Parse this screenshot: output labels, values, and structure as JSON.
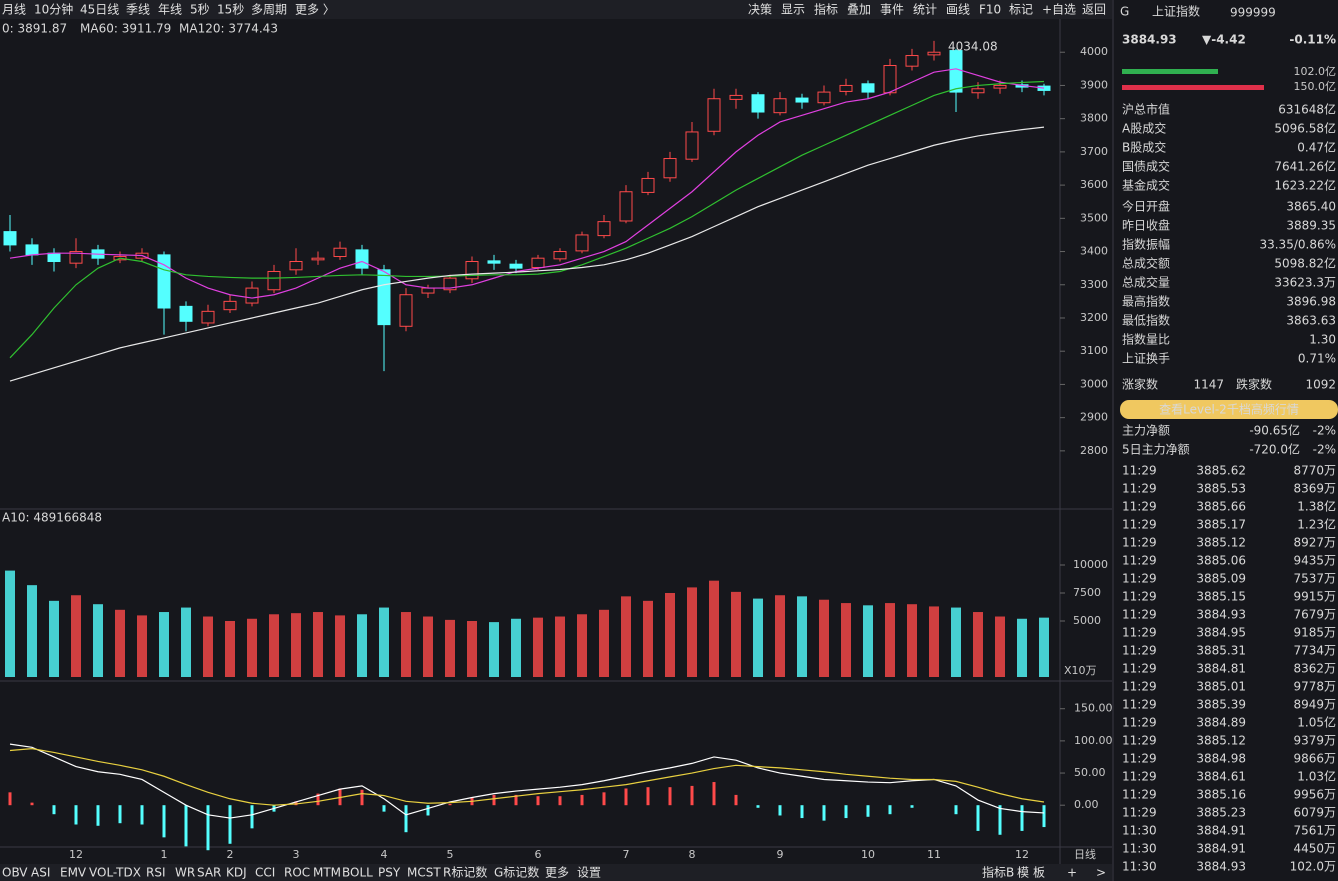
{
  "toolbar": {
    "left": [
      "月线",
      "10分钟",
      "45日线",
      "季线",
      "年线",
      "5秒",
      "15秒",
      "多周期",
      "更多 〉"
    ],
    "right": [
      "决策",
      "显示",
      "指标",
      "叠加",
      "事件",
      "统计",
      "画线",
      "F10",
      "标记",
      "+自选",
      "返回"
    ]
  },
  "tabs": {
    "left": [
      "OBV",
      "ASI",
      "EMV",
      "VOL-TDX",
      "RSI",
      "WR",
      "SAR",
      "KDJ",
      "CCI",
      "ROC",
      "MTM",
      "BOLL",
      "PSY",
      "MCST",
      "R标记数",
      "G标记数",
      "更多",
      "设置"
    ],
    "right": [
      "指标B",
      "模",
      "板",
      "+",
      ">"
    ],
    "period": "日线"
  },
  "chart_data": [
    {
      "type": "candlestick",
      "legend": [
        {
          "text": "0: 3891.87",
          "color": "#e040e0"
        },
        {
          "text": "MA60: 3911.79",
          "color": "#30c030"
        },
        {
          "text": "MA120: 3774.43",
          "color": "#e8e8e8"
        }
      ],
      "annotation": "4034.08",
      "categories": [
        null,
        null,
        null,
        "12",
        null,
        null,
        null,
        "1",
        null,
        null,
        "2",
        null,
        null,
        "3",
        null,
        null,
        null,
        "4",
        null,
        null,
        "5",
        null,
        null,
        null,
        "6",
        null,
        null,
        null,
        "7",
        null,
        null,
        "8",
        null,
        null,
        null,
        "9",
        null,
        null,
        null,
        "10",
        null,
        null,
        "11",
        null,
        null,
        null,
        "12",
        null
      ],
      "open": [
        3460,
        3420,
        3395,
        3365,
        3405,
        3375,
        3380,
        3390,
        3235,
        3185,
        3225,
        3245,
        3285,
        3345,
        3375,
        3385,
        3405,
        3345,
        3175,
        3275,
        3285,
        3318,
        3372,
        3362,
        3352,
        3378,
        3402,
        3448,
        3492,
        3578,
        3622,
        3678,
        3762,
        3858,
        3872,
        3818,
        3862,
        3848,
        3882,
        3905,
        3878,
        3958,
        3992,
        4005,
        3878,
        3892,
        3902,
        3898
      ],
      "high": [
        3510,
        3440,
        3410,
        3440,
        3420,
        3400,
        3410,
        3400,
        3250,
        3240,
        3270,
        3310,
        3360,
        3410,
        3400,
        3430,
        3420,
        3360,
        3290,
        3300,
        3330,
        3385,
        3390,
        3375,
        3390,
        3410,
        3460,
        3510,
        3600,
        3640,
        3700,
        3790,
        3890,
        3890,
        3880,
        3880,
        3875,
        3900,
        3920,
        3915,
        3980,
        4010,
        4034.08,
        4010,
        3910,
        3915,
        3915,
        3905
      ],
      "low": [
        3400,
        3360,
        3340,
        3350,
        3360,
        3365,
        3370,
        3150,
        3160,
        3175,
        3215,
        3235,
        3275,
        3330,
        3360,
        3375,
        3330,
        3040,
        3160,
        3260,
        3275,
        3305,
        3345,
        3335,
        3345,
        3370,
        3395,
        3440,
        3485,
        3570,
        3610,
        3670,
        3750,
        3830,
        3800,
        3810,
        3830,
        3840,
        3870,
        3860,
        3870,
        3945,
        3975,
        3820,
        3860,
        3875,
        3880,
        3870
      ],
      "close": [
        3420,
        3390,
        3370,
        3400,
        3380,
        3385,
        3395,
        3230,
        3190,
        3220,
        3250,
        3290,
        3340,
        3370,
        3380,
        3410,
        3350,
        3180,
        3270,
        3290,
        3320,
        3370,
        3365,
        3350,
        3380,
        3400,
        3450,
        3490,
        3580,
        3620,
        3680,
        3760,
        3860,
        3870,
        3820,
        3860,
        3850,
        3880,
        3900,
        3880,
        3960,
        3990,
        4000,
        3880,
        3890,
        3900,
        3895,
        3885
      ],
      "lines": [
        {
          "color": "#e040e0",
          "values": [
            3380,
            3390,
            3395,
            3395,
            3392,
            3390,
            3388,
            3360,
            3320,
            3290,
            3270,
            3260,
            3270,
            3290,
            3320,
            3350,
            3370,
            3340,
            3300,
            3290,
            3290,
            3300,
            3320,
            3340,
            3350,
            3360,
            3380,
            3400,
            3430,
            3480,
            3530,
            3580,
            3640,
            3700,
            3750,
            3790,
            3810,
            3830,
            3850,
            3860,
            3880,
            3910,
            3940,
            3950,
            3930,
            3910,
            3900,
            3891.87
          ]
        },
        {
          "color": "#30c030",
          "values": [
            3080,
            3150,
            3230,
            3300,
            3350,
            3380,
            3370,
            3345,
            3330,
            3325,
            3322,
            3320,
            3320,
            3322,
            3325,
            3328,
            3330,
            3328,
            3325,
            3325,
            3326,
            3328,
            3330,
            3330,
            3332,
            3340,
            3360,
            3385,
            3410,
            3440,
            3470,
            3505,
            3545,
            3585,
            3620,
            3655,
            3690,
            3720,
            3750,
            3780,
            3810,
            3840,
            3870,
            3890,
            3900,
            3905,
            3909,
            3911.79
          ]
        },
        {
          "color": "#e8e8e8",
          "values": [
            3010,
            3030,
            3050,
            3070,
            3090,
            3110,
            3125,
            3140,
            3155,
            3170,
            3185,
            3200,
            3215,
            3230,
            3245,
            3265,
            3285,
            3300,
            3310,
            3320,
            3328,
            3332,
            3335,
            3338,
            3342,
            3346,
            3352,
            3360,
            3375,
            3395,
            3420,
            3445,
            3475,
            3505,
            3535,
            3560,
            3585,
            3610,
            3635,
            3660,
            3680,
            3700,
            3720,
            3735,
            3748,
            3758,
            3767,
            3774.43
          ]
        }
      ],
      "up_color": "#ff4a4a",
      "down_color": "#54ffff",
      "ylim": [
        2628,
        4097
      ],
      "yticks": [
        2800,
        2900,
        3000,
        3100,
        3200,
        3300,
        3400,
        3500,
        3600,
        3700,
        3800,
        3900,
        4000
      ]
    },
    {
      "type": "bar",
      "legend": "A10: 489166848",
      "unit": "X10万",
      "values": [
        9500,
        8200,
        6800,
        7300,
        6500,
        6000,
        5500,
        5800,
        6200,
        5400,
        5000,
        5200,
        5600,
        5700,
        5800,
        5500,
        5600,
        6200,
        5800,
        5400,
        5100,
        5000,
        4900,
        5200,
        5300,
        5400,
        5600,
        6000,
        7200,
        6800,
        7500,
        8000,
        8600,
        7600,
        7000,
        7300,
        7200,
        6900,
        6600,
        6400,
        6600,
        6500,
        6300,
        6200,
        5800,
        5400,
        5200,
        5300
      ],
      "ylim": [
        0,
        15000
      ],
      "yticks": [
        5000,
        7500,
        10000
      ]
    },
    {
      "type": "macd",
      "dif": {
        "color": "#ffffff",
        "values": [
          95,
          90,
          75,
          60,
          52,
          48,
          40,
          20,
          0,
          -15,
          -20,
          -15,
          -5,
          5,
          15,
          25,
          30,
          10,
          -15,
          -5,
          5,
          12,
          18,
          22,
          25,
          28,
          32,
          38,
          45,
          52,
          58,
          65,
          75,
          70,
          58,
          50,
          45,
          40,
          38,
          36,
          35,
          38,
          40,
          30,
          8,
          -5,
          -10,
          -12
        ]
      },
      "dea": {
        "color": "#e8d040",
        "values": [
          85,
          88,
          82,
          75,
          68,
          62,
          55,
          45,
          32,
          20,
          10,
          3,
          0,
          2,
          6,
          12,
          18,
          15,
          6,
          3,
          4,
          6,
          10,
          14,
          18,
          21,
          24,
          28,
          32,
          38,
          44,
          50,
          57,
          62,
          60,
          58,
          55,
          52,
          48,
          45,
          42,
          40,
          40,
          37,
          28,
          18,
          10,
          5
        ]
      },
      "histogram": [
        20,
        4,
        -14,
        -30,
        -32,
        -28,
        -30,
        -50,
        -64,
        -70,
        -60,
        -36,
        -10,
        6,
        18,
        26,
        24,
        -10,
        -42,
        -16,
        2,
        12,
        16,
        16,
        14,
        14,
        16,
        20,
        26,
        28,
        28,
        30,
        36,
        16,
        -4,
        -16,
        -20,
        -24,
        -20,
        -18,
        -14,
        -4,
        0,
        -14,
        -40,
        -46,
        -40,
        -34
      ],
      "ylim": [
        -65,
        190
      ],
      "yticks": [
        {
          "value": 0,
          "label": "0.00"
        },
        {
          "value": 50,
          "label": "50.00"
        },
        {
          "value": 100,
          "label": "100.00"
        },
        {
          "value": 150,
          "label": "150.00"
        }
      ]
    }
  ],
  "quote": {
    "flag": "G",
    "name": "上证指数",
    "code": "999999",
    "price": "3884.93",
    "change": "▼-4.42",
    "pct": "-0.11%",
    "bars": [
      "102.0亿",
      "150.0亿"
    ],
    "rows": [
      {
        "label": "沪总市值",
        "value": "631648亿",
        "color": "#e0e0e0"
      },
      {
        "label": "A股成交",
        "value": "5096.58亿",
        "color": "#f0b040"
      },
      {
        "label": "B股成交",
        "value": "0.47亿",
        "color": "#f0d040"
      },
      {
        "label": "国债成交",
        "value": "7641.26亿",
        "color": "#f0d040"
      },
      {
        "label": "基金成交",
        "value": "1623.22亿",
        "color": "#f0d040"
      },
      {
        "label": "今日开盘",
        "value": "3865.40",
        "color": "#30d060"
      },
      {
        "label": "昨日收盘",
        "value": "3889.35",
        "color": "#e0e0e0"
      },
      {
        "label": "指数振幅",
        "value": "33.35/0.86%",
        "color": "#e0e0e0"
      },
      {
        "label": "总成交额",
        "value": "5098.82亿",
        "color": "#f0d040"
      },
      {
        "label": "总成交量",
        "value": "33623.3万",
        "color": "#f0d040"
      },
      {
        "label": "最高指数",
        "value": "3896.98",
        "color": "#ff4a4a"
      },
      {
        "label": "最低指数",
        "value": "3863.63",
        "color": "#30d060"
      },
      {
        "label": "指数量比",
        "value": "1.30",
        "color": "#ff4a4a"
      },
      {
        "label": "上证换手",
        "value": "0.71%",
        "color": "#e0e0e0"
      }
    ],
    "breadth": [
      "涨家数",
      "1147",
      "跌家数",
      "1092"
    ],
    "button": "查看Level-2千档高频行情",
    "flows": [
      [
        "主力净额",
        "-90.65亿",
        "-2%"
      ],
      [
        "5日主力净额",
        "-720.0亿",
        "-2%"
      ]
    ],
    "ticks": {
      "times": [
        "11:29",
        "11:29",
        "11:29",
        "11:29",
        "11:29",
        "11:29",
        "11:29",
        "11:29",
        "11:29",
        "11:29",
        "11:29",
        "11:29",
        "11:29",
        "11:29",
        "11:29",
        "11:29",
        "11:29",
        "11:29",
        "11:29",
        "11:29",
        "11:30",
        "11:30",
        "11:30"
      ],
      "prices": [
        "3885.62",
        "3885.53",
        "3885.66",
        "3885.17",
        "3885.12",
        "3885.06",
        "3885.09",
        "3885.15",
        "3884.93",
        "3884.95",
        "3885.31",
        "3884.81",
        "3885.01",
        "3885.39",
        "3884.89",
        "3885.12",
        "3884.98",
        "3884.61",
        "3885.16",
        "3885.23",
        "3884.91",
        "3884.91",
        "3884.93"
      ],
      "volumes": [
        "8770万",
        "8369万",
        "1.38亿",
        "1.23亿",
        "8927万",
        "9435万",
        "7537万",
        "9915万",
        "7679万",
        "9185万",
        "7734万",
        "8362万",
        "9778万",
        "8949万",
        "1.05亿",
        "9379万",
        "9866万",
        "1.03亿",
        "9956万",
        "6079万",
        "7561万",
        "4450万",
        "102.0万"
      ]
    }
  }
}
